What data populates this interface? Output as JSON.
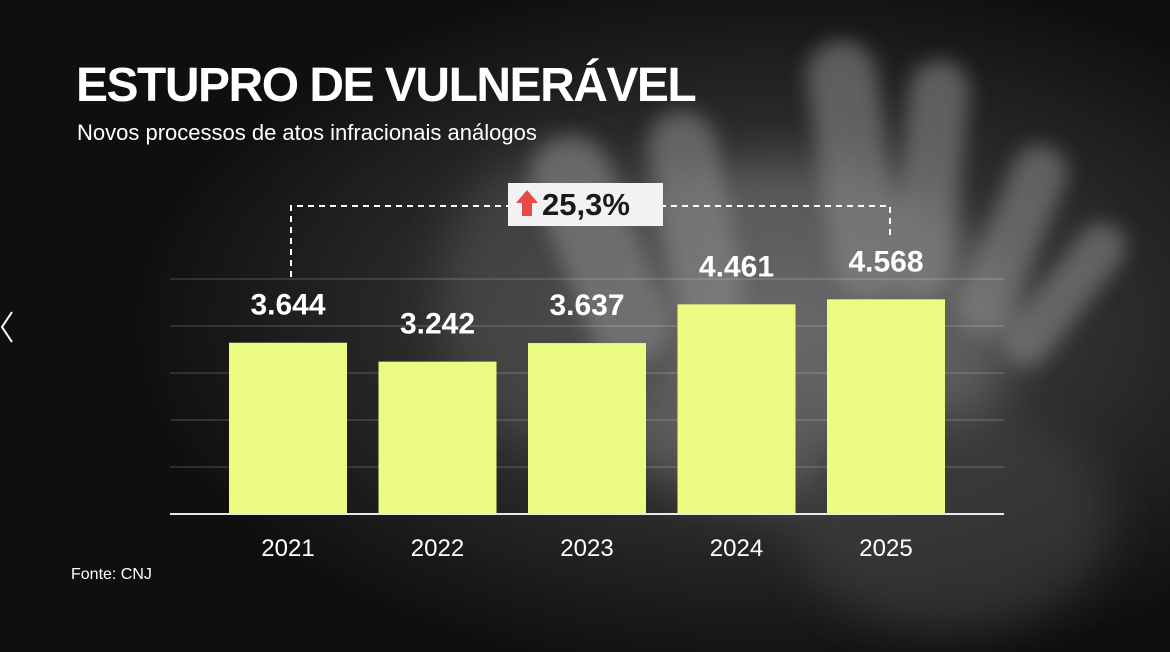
{
  "title": "ESTUPRO DE VULNERÁVEL",
  "subtitle": "Novos processos de atos infracionais análogos",
  "source": "Fonte: CNJ",
  "change_badge": {
    "label": "25,3%",
    "direction_icon": "arrow-up-icon",
    "from": "2021",
    "to": "2025"
  },
  "colors": {
    "bar": "#ecfb81",
    "text": "#ffffff",
    "arrow": "#e84a4a",
    "badge_bg": "#f2f2f2",
    "badge_text": "#1a1a1a",
    "background": "#141414"
  },
  "nav": {
    "back_icon": "chevron-left-icon"
  },
  "chart_data": {
    "type": "bar",
    "categories": [
      "2021",
      "2022",
      "2023",
      "2024",
      "2025"
    ],
    "values": [
      3644,
      3242,
      3637,
      4461,
      4568
    ],
    "value_labels": [
      "3.644",
      "3.242",
      "3.637",
      "4.461",
      "4.568"
    ],
    "title": "ESTUPRO DE VULNERÁVEL",
    "subtitle": "Novos processos de atos infracionais análogos",
    "xlabel": "",
    "ylabel": "",
    "ylim": [
      0,
      5000
    ],
    "grid": true,
    "legend": "none"
  }
}
